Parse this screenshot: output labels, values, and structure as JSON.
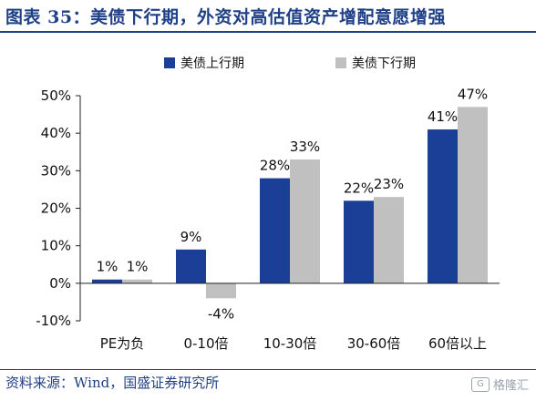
{
  "header": {
    "title": "图表 35：美债下行期，外资对高估值资产增配意愿增强"
  },
  "footer": {
    "source": "资料来源：Wind，国盛证券研究所",
    "watermark": "格隆汇"
  },
  "colors": {
    "series1": "#1b3f96",
    "series2": "#c0c0c0",
    "title": "#1f3f86"
  },
  "chart_data": {
    "type": "bar",
    "categories": [
      "PE为负",
      "0-10倍",
      "10-30倍",
      "30-60倍",
      "60倍以上"
    ],
    "series": [
      {
        "name": "美债上行期",
        "values": [
          1,
          9,
          28,
          22,
          41
        ],
        "labels": [
          "1%",
          "9%",
          "28%",
          "22%",
          "41%"
        ]
      },
      {
        "name": "美债下行期",
        "values": [
          1,
          -4,
          33,
          23,
          47
        ],
        "labels": [
          "1%",
          "-4%",
          "33%",
          "23%",
          "47%"
        ]
      }
    ],
    "y_ticks": [
      "-10%",
      "0%",
      "10%",
      "20%",
      "30%",
      "40%",
      "50%"
    ],
    "ylim": [
      -10,
      50
    ],
    "ylabel": "",
    "xlabel": "",
    "legend_position": "top",
    "grid": false
  }
}
